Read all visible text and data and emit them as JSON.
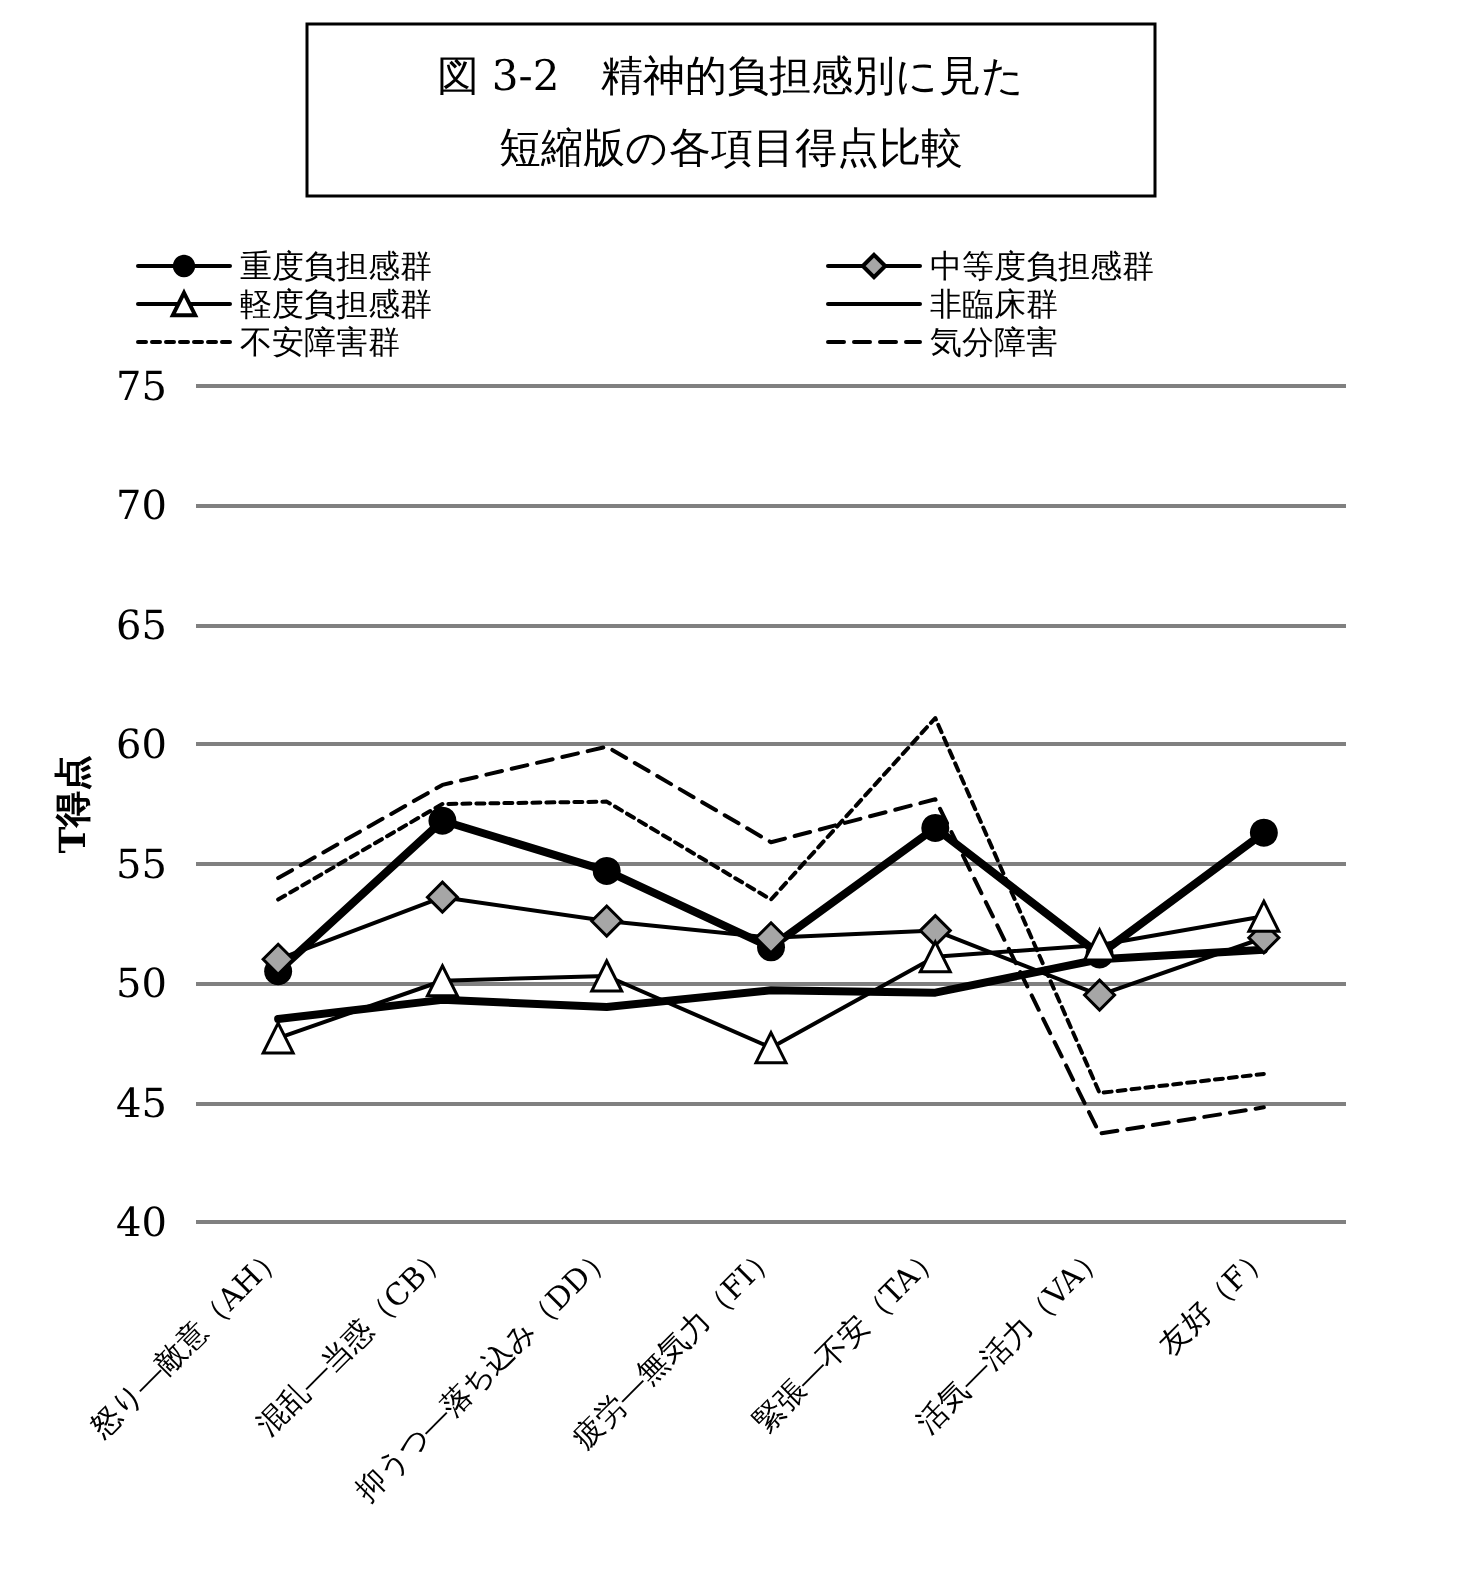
{
  "chart_data": {
    "type": "line",
    "title": "図 3-2　精神的負担感別に見た短縮版の各項目得点比較",
    "ylabel": "T得点",
    "categories": [
      "怒り―敵意（AH）",
      "混乱―当惑（CB）",
      "抑うつ―落ち込み（DD）",
      "疲労―無気力（FI）",
      "緊張―不安（TA）",
      "活気―活力（VA）",
      "友好（F）"
    ],
    "series": [
      {
        "name": "重度負担感群",
        "color": "#000000",
        "marker": "circle",
        "line_style": "solid",
        "values": [
          50.5,
          56.8,
          54.7,
          51.5,
          56.5,
          51.2,
          56.3
        ]
      },
      {
        "name": "中等度負担感群",
        "color": "#000000",
        "marker": "diamond",
        "line_style": "solid",
        "values": [
          51.0,
          53.6,
          52.6,
          51.9,
          52.2,
          49.5,
          51.9
        ]
      },
      {
        "name": "軽度負担感群",
        "color": "#000000",
        "marker": "triangle",
        "line_style": "solid",
        "values": [
          47.7,
          50.1,
          50.3,
          47.3,
          51.1,
          51.6,
          52.8
        ]
      },
      {
        "name": "非臨床群",
        "color": "#000000",
        "marker": "none",
        "line_style": "solid",
        "values": [
          48.5,
          49.3,
          49.0,
          49.7,
          49.6,
          51.0,
          51.4
        ]
      },
      {
        "name": "不安障害群",
        "color": "#000000",
        "marker": "none",
        "line_style": "dotted",
        "values": [
          53.5,
          57.5,
          57.6,
          53.5,
          61.1,
          45.4,
          46.2
        ]
      },
      {
        "name": "気分障害",
        "color": "#000000",
        "marker": "none",
        "line_style": "dashed",
        "values": [
          54.4,
          58.3,
          59.9,
          55.9,
          57.7,
          43.7,
          44.8
        ]
      }
    ],
    "ylim": [
      40,
      75
    ],
    "yticks": [
      40,
      45,
      50,
      55,
      60,
      65,
      70,
      75
    ],
    "grid": "y",
    "legend": "top"
  }
}
